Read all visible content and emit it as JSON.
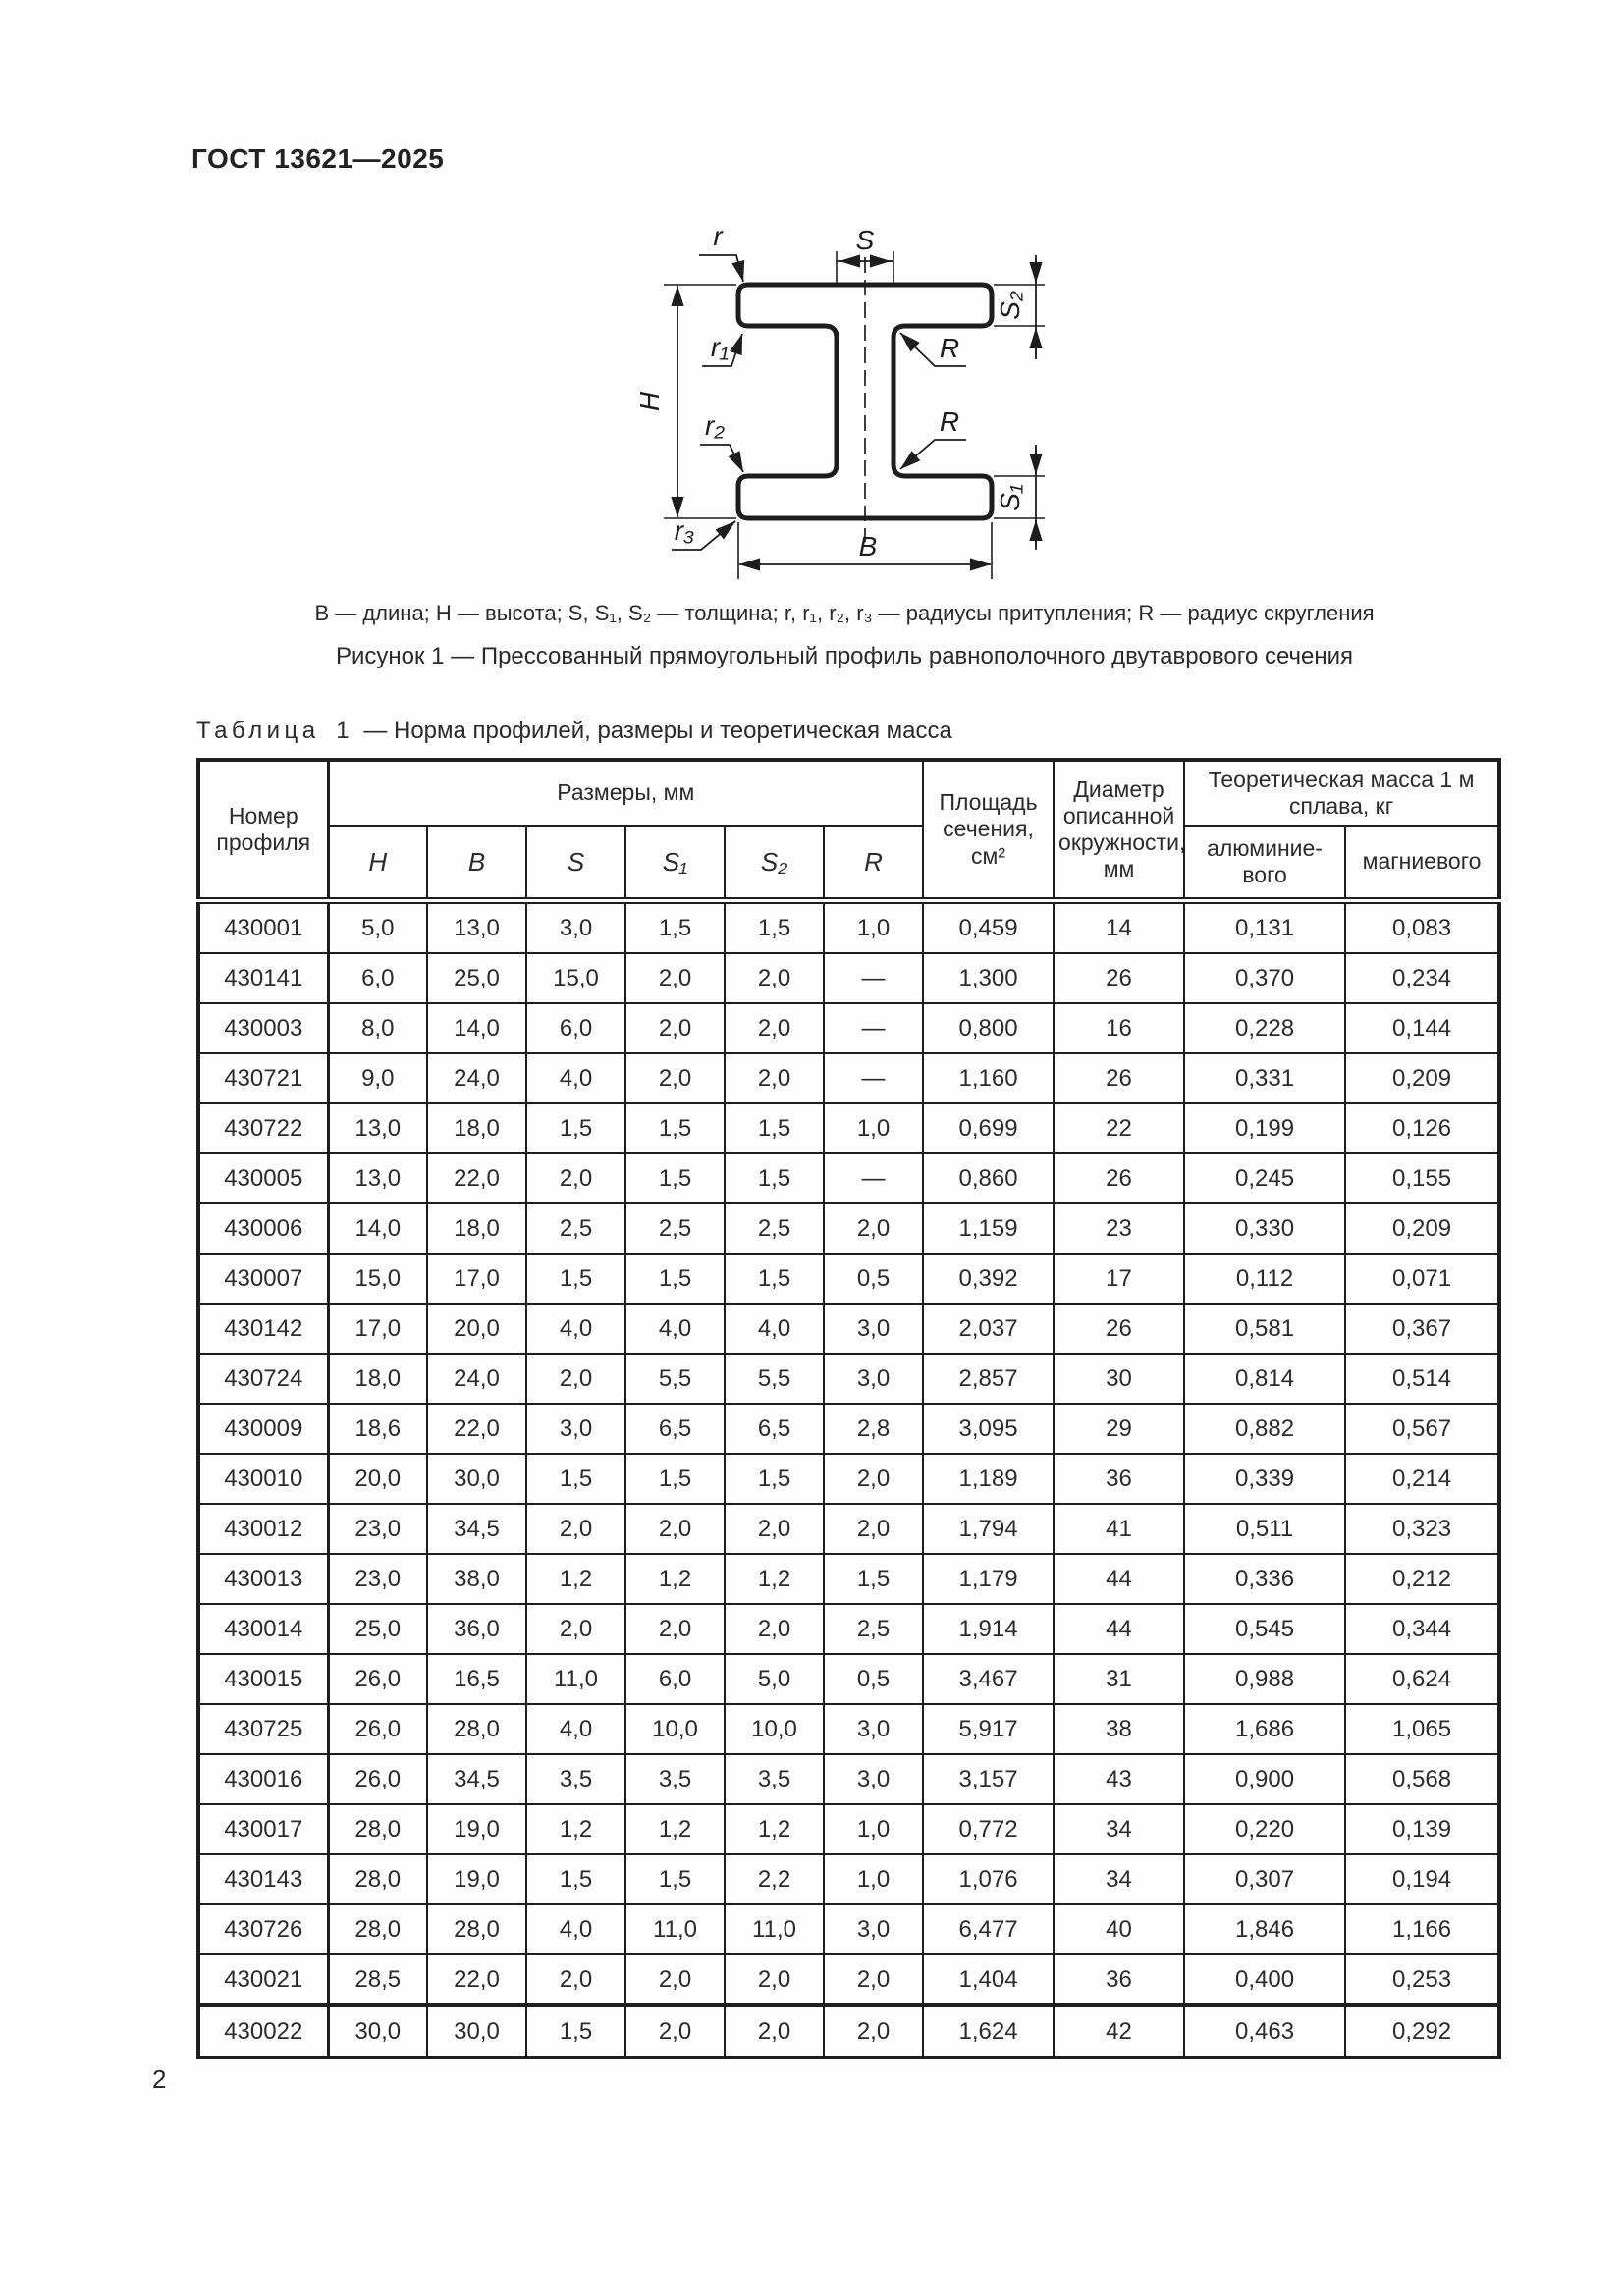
{
  "page": {
    "standard_code": "ГОСТ 13621—2025",
    "page_number": "2"
  },
  "figure": {
    "labels": {
      "r": "r",
      "r1": "r₁",
      "r2": "r₂",
      "r3": "r₃",
      "R_top": "R",
      "R_bottom": "R",
      "S": "S",
      "S1": "S₁",
      "S2": "S₂",
      "H": "H",
      "B": "B"
    },
    "legend": "B — длина; H — высота; S, S₁, S₂ — толщина; r, r₁, r₂, r₃ — радиусы притупления; R — радиус скругления",
    "caption": "Рисунок 1 — Прессованный прямоугольный профиль равнополочного двутаврового сечения"
  },
  "table": {
    "title_word": "Таблица",
    "title_num": "1",
    "title_rest": "— Норма профилей, размеры и теоретическая масса",
    "headers": {
      "profile_number": "Номер профиля",
      "dimensions_group": "Размеры, мм",
      "dims": [
        "H",
        "B",
        "S",
        "S₁",
        "S₂",
        "R"
      ],
      "area": "Площадь сечения, см²",
      "diameter": "Диаметр описанной окружности, мм",
      "mass_group": "Теоретическая масса 1 м сплава, кг",
      "mass_aluminum": "алюминие­вого",
      "mass_magnesium": "магниевого"
    },
    "rows": [
      [
        "430001",
        "5,0",
        "13,0",
        "3,0",
        "1,5",
        "1,5",
        "1,0",
        "0,459",
        "14",
        "0,131",
        "0,083"
      ],
      [
        "430141",
        "6,0",
        "25,0",
        "15,0",
        "2,0",
        "2,0",
        "—",
        "1,300",
        "26",
        "0,370",
        "0,234"
      ],
      [
        "430003",
        "8,0",
        "14,0",
        "6,0",
        "2,0",
        "2,0",
        "—",
        "0,800",
        "16",
        "0,228",
        "0,144"
      ],
      [
        "430721",
        "9,0",
        "24,0",
        "4,0",
        "2,0",
        "2,0",
        "—",
        "1,160",
        "26",
        "0,331",
        "0,209"
      ],
      [
        "430722",
        "13,0",
        "18,0",
        "1,5",
        "1,5",
        "1,5",
        "1,0",
        "0,699",
        "22",
        "0,199",
        "0,126"
      ],
      [
        "430005",
        "13,0",
        "22,0",
        "2,0",
        "1,5",
        "1,5",
        "—",
        "0,860",
        "26",
        "0,245",
        "0,155"
      ],
      [
        "430006",
        "14,0",
        "18,0",
        "2,5",
        "2,5",
        "2,5",
        "2,0",
        "1,159",
        "23",
        "0,330",
        "0,209"
      ],
      [
        "430007",
        "15,0",
        "17,0",
        "1,5",
        "1,5",
        "1,5",
        "0,5",
        "0,392",
        "17",
        "0,112",
        "0,071"
      ],
      [
        "430142",
        "17,0",
        "20,0",
        "4,0",
        "4,0",
        "4,0",
        "3,0",
        "2,037",
        "26",
        "0,581",
        "0,367"
      ],
      [
        "430724",
        "18,0",
        "24,0",
        "2,0",
        "5,5",
        "5,5",
        "3,0",
        "2,857",
        "30",
        "0,814",
        "0,514"
      ],
      [
        "430009",
        "18,6",
        "22,0",
        "3,0",
        "6,5",
        "6,5",
        "2,8",
        "3,095",
        "29",
        "0,882",
        "0,567"
      ],
      [
        "430010",
        "20,0",
        "30,0",
        "1,5",
        "1,5",
        "1,5",
        "2,0",
        "1,189",
        "36",
        "0,339",
        "0,214"
      ],
      [
        "430012",
        "23,0",
        "34,5",
        "2,0",
        "2,0",
        "2,0",
        "2,0",
        "1,794",
        "41",
        "0,511",
        "0,323"
      ],
      [
        "430013",
        "23,0",
        "38,0",
        "1,2",
        "1,2",
        "1,2",
        "1,5",
        "1,179",
        "44",
        "0,336",
        "0,212"
      ],
      [
        "430014",
        "25,0",
        "36,0",
        "2,0",
        "2,0",
        "2,0",
        "2,5",
        "1,914",
        "44",
        "0,545",
        "0,344"
      ],
      [
        "430015",
        "26,0",
        "16,5",
        "11,0",
        "6,0",
        "5,0",
        "0,5",
        "3,467",
        "31",
        "0,988",
        "0,624"
      ],
      [
        "430725",
        "26,0",
        "28,0",
        "4,0",
        "10,0",
        "10,0",
        "3,0",
        "5,917",
        "38",
        "1,686",
        "1,065"
      ],
      [
        "430016",
        "26,0",
        "34,5",
        "3,5",
        "3,5",
        "3,5",
        "3,0",
        "3,157",
        "43",
        "0,900",
        "0,568"
      ],
      [
        "430017",
        "28,0",
        "19,0",
        "1,2",
        "1,2",
        "1,2",
        "1,0",
        "0,772",
        "34",
        "0,220",
        "0,139"
      ],
      [
        "430143",
        "28,0",
        "19,0",
        "1,5",
        "1,5",
        "2,2",
        "1,0",
        "1,076",
        "34",
        "0,307",
        "0,194"
      ],
      [
        "430726",
        "28,0",
        "28,0",
        "4,0",
        "11,0",
        "11,0",
        "3,0",
        "6,477",
        "40",
        "1,846",
        "1,166"
      ],
      [
        "430021",
        "28,5",
        "22,0",
        "2,0",
        "2,0",
        "2,0",
        "2,0",
        "1,404",
        "36",
        "0,400",
        "0,253"
      ],
      [
        "430022",
        "30,0",
        "30,0",
        "1,5",
        "2,0",
        "2,0",
        "2,0",
        "1,624",
        "42",
        "0,463",
        "0,292"
      ]
    ]
  }
}
